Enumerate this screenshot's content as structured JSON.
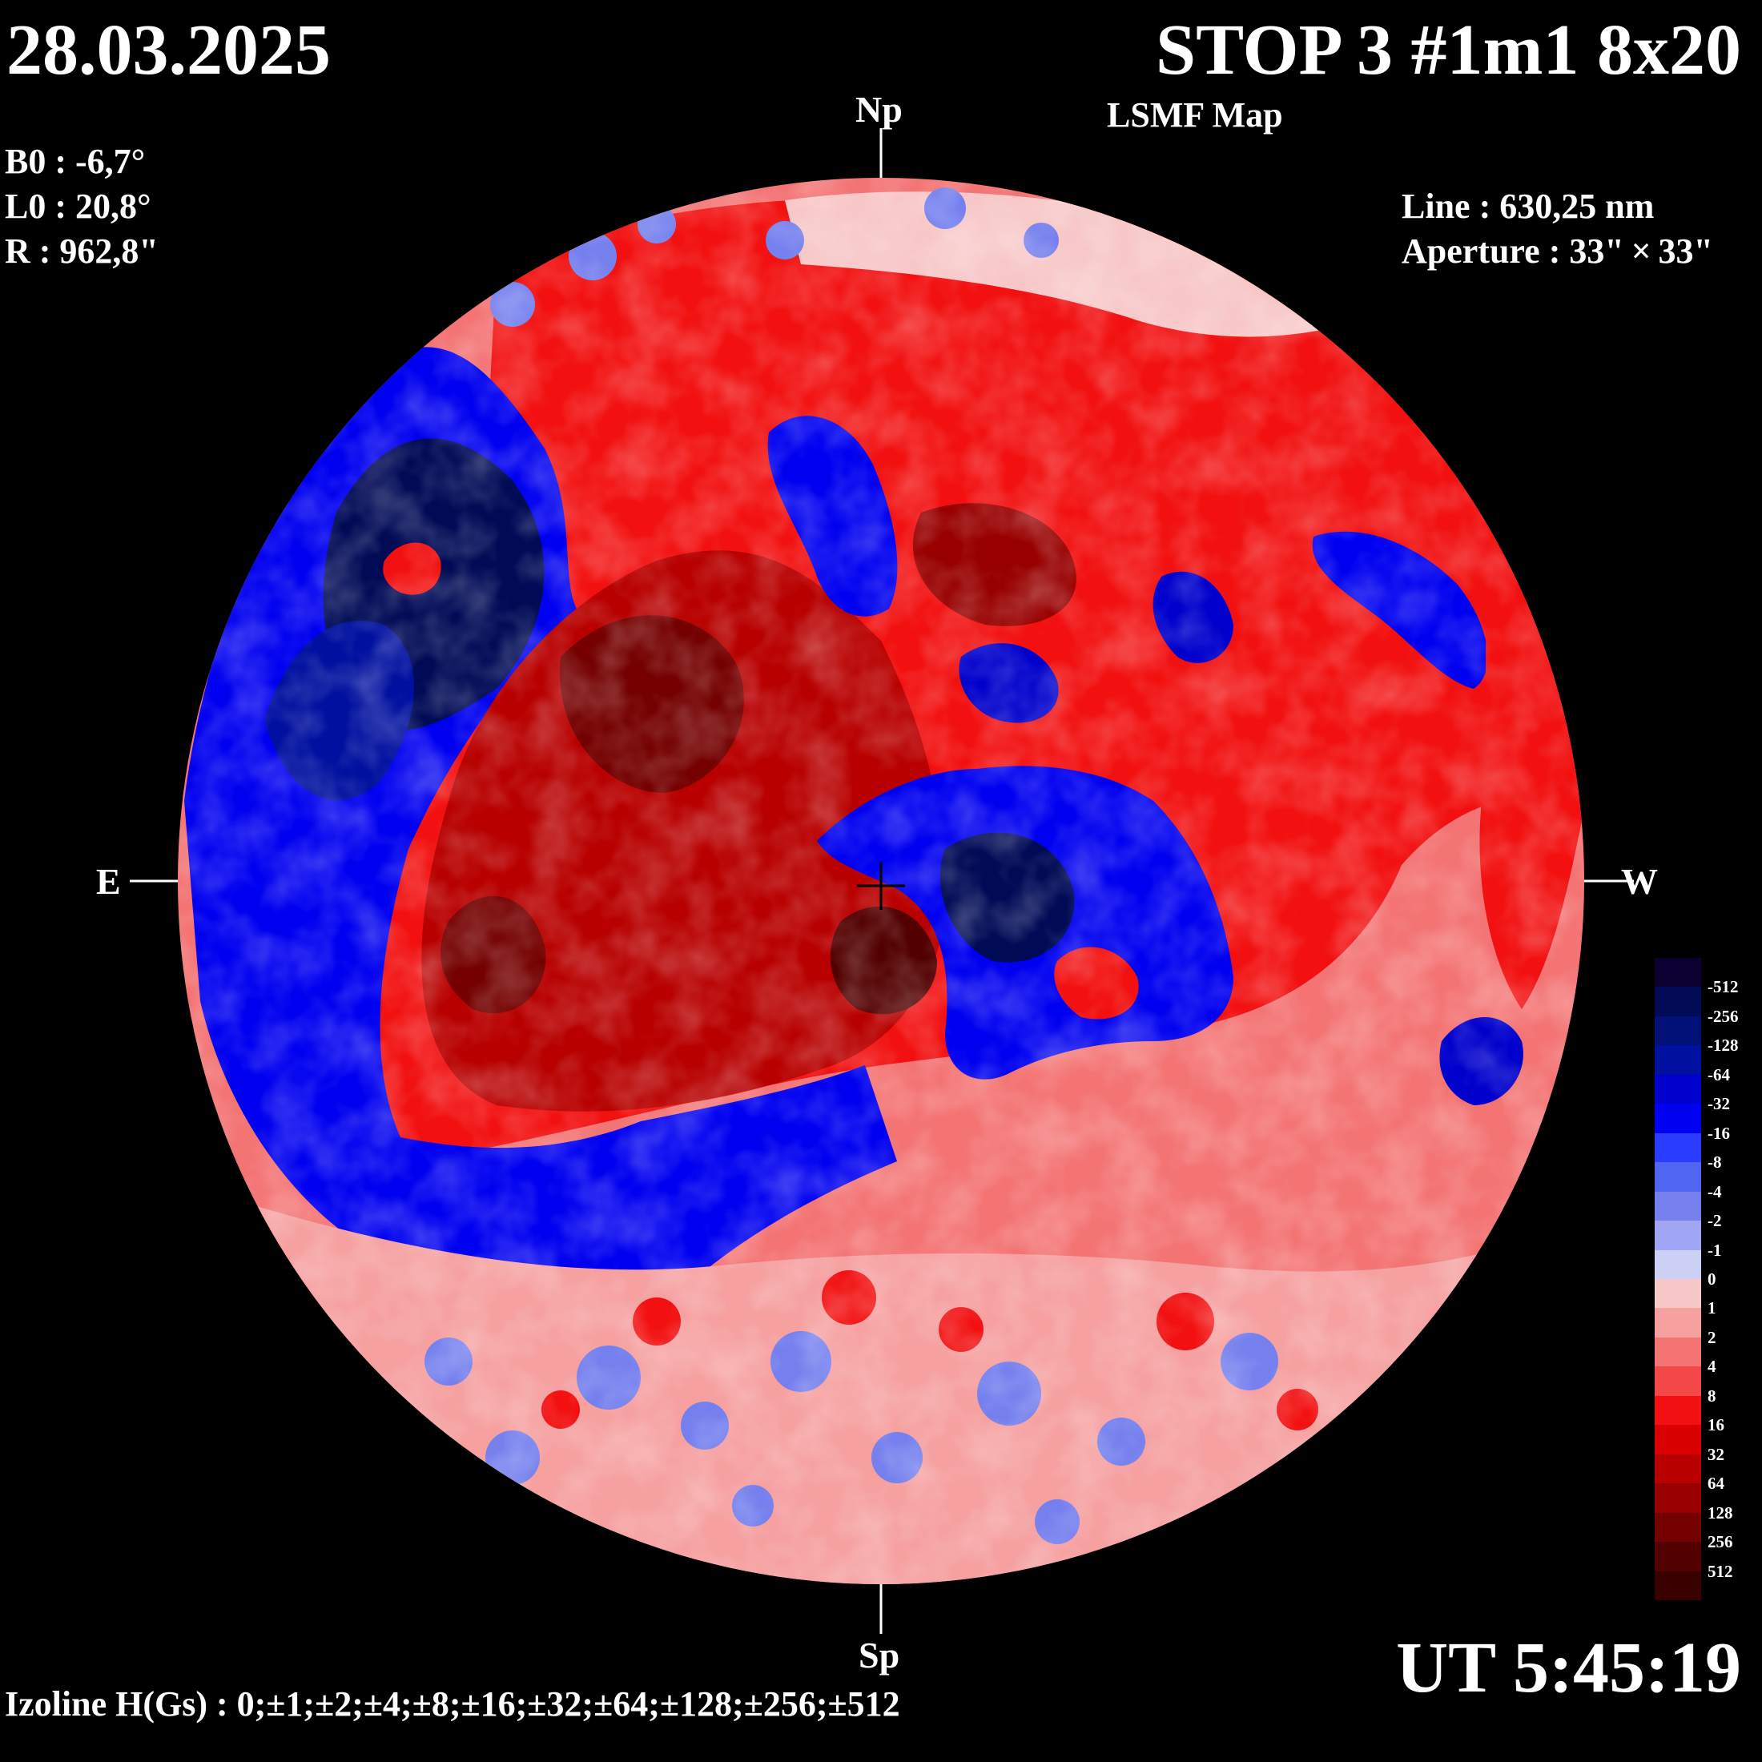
{
  "header": {
    "date": "28.03.2025",
    "title": "STOP 3 #1m1 8x20",
    "subtitle": "LSMF  Map"
  },
  "params": {
    "b0": "B0 : -6,7°",
    "l0": "L0 : 20,8°",
    "r": "R  : 962,8\""
  },
  "instrument": {
    "line": "Line :  630,25 nm",
    "aperture": "Aperture : 33\" × 33\""
  },
  "time": "UT 5:45:19",
  "izoline": "Izoline H(Gs) : 0;±1;±2;±4;±8;±16;±32;±64;±128;±256;±512",
  "compass": {
    "north": "Np",
    "south": "Sp",
    "east": "E",
    "west": "W"
  },
  "legend": {
    "levels": [
      "-512",
      "-256",
      "-128",
      "-64",
      "-32",
      "-16",
      "-8",
      "-4",
      "-2",
      "-1",
      "0",
      "1",
      "2",
      "4",
      "8",
      "16",
      "32",
      "64",
      "128",
      "256",
      "512"
    ],
    "colors": [
      "#0c0030",
      "#000a55",
      "#001077",
      "#00109f",
      "#0000cc",
      "#0000f0",
      "#2a3cff",
      "#5066f2",
      "#7580ee",
      "#a0a6f4",
      "#cdd0f5",
      "#f8c8c8",
      "#f6a0a0",
      "#f47474",
      "#f24848",
      "#f21010",
      "#d80000",
      "#b80000",
      "#980000",
      "#740000",
      "#520000",
      "#3a0000"
    ]
  }
}
